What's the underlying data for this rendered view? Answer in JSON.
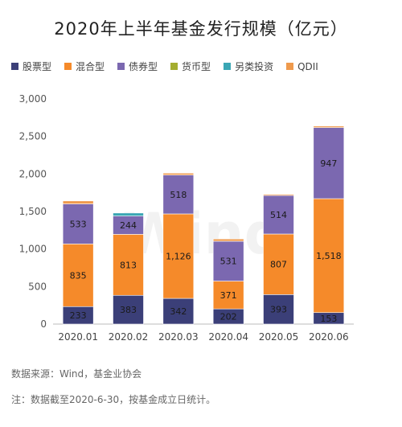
{
  "title": "2020年上半年基金发行规模（亿元）",
  "source_note": "数据来源：Wind，基金业协会",
  "footnote": "注：数据截至2020-6-30，按基金成立日统计。",
  "watermark": "Wind",
  "chart_data": {
    "type": "bar",
    "stacked": true,
    "title": "2020年上半年基金发行规模（亿元）",
    "categories": [
      "2020.01",
      "2020.02",
      "2020.03",
      "2020.04",
      "2020.05",
      "2020.06"
    ],
    "ylim": [
      0,
      3000
    ],
    "yticks": [
      0,
      500,
      1000,
      1500,
      2000,
      2500,
      3000
    ],
    "ytick_labels": [
      "0",
      "500",
      "1,000",
      "1,500",
      "2,000",
      "2,500",
      "3,000"
    ],
    "legend_position": "top",
    "grid": false,
    "series": [
      {
        "name": "股票型",
        "color": "#3b3f78",
        "values": [
          233,
          383,
          342,
          202,
          393,
          153
        ],
        "labels": [
          "233",
          "383",
          "342",
          "202",
          "393",
          "153"
        ]
      },
      {
        "name": "混合型",
        "color": "#f58a2a",
        "values": [
          835,
          813,
          1126,
          371,
          807,
          1518
        ],
        "labels": [
          "835",
          "813",
          "1,126",
          "371",
          "807",
          "1,518"
        ]
      },
      {
        "name": "债券型",
        "color": "#7b68b0",
        "values": [
          533,
          244,
          518,
          531,
          514,
          947
        ],
        "labels": [
          "533",
          "244",
          "518",
          "531",
          "514",
          "947"
        ]
      },
      {
        "name": "货币型",
        "color": "#a4ad2f",
        "values": [
          0,
          0,
          0,
          0,
          0,
          0
        ],
        "labels": [
          "",
          "",
          "",
          "",
          "",
          ""
        ]
      },
      {
        "name": "另类投资",
        "color": "#3aa6b4",
        "values": [
          0,
          40,
          0,
          0,
          0,
          0
        ],
        "labels": [
          "",
          "",
          "",
          "",
          "",
          ""
        ]
      },
      {
        "name": "QDII",
        "color": "#ef9a4d",
        "values": [
          40,
          0,
          25,
          30,
          15,
          20
        ],
        "labels": [
          "",
          "",
          "",
          "",
          "",
          ""
        ]
      }
    ]
  }
}
